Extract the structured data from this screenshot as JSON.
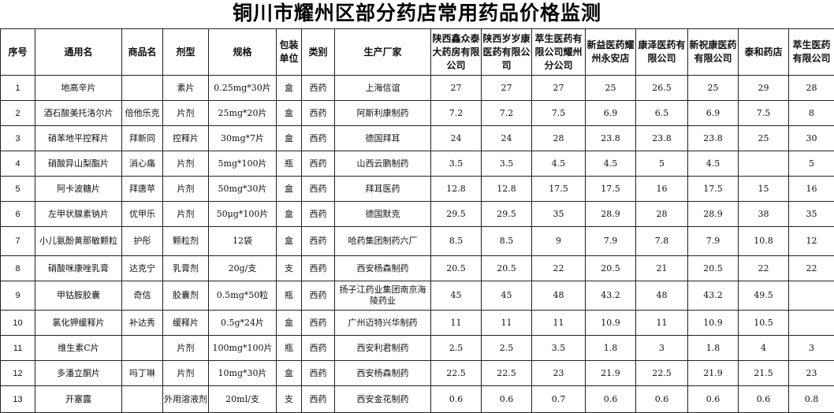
{
  "title": "铜川市耀州区部分药店常用药品价格监测",
  "headers": [
    "序号",
    "通用名",
    "商品名",
    "剂型",
    "规格",
    "包装单位",
    "类别",
    "生产厂家",
    "陕西鑫众泰大药房有限公司",
    "陕西岁岁康医药有限公司",
    "萃生医药有限公司耀州分公司",
    "新益医药耀州永安店",
    "康泽医药有限公司",
    "新祝康医药有限公司",
    "泰和药店",
    "萃生医药有限公司"
  ],
  "rows": [
    {
      "idx": "1",
      "name": "地高辛片",
      "brand": "",
      "form": "素片",
      "spec": "0.25mg*30片",
      "unit": "盒",
      "type": "西药",
      "maker": "上海信谊",
      "prices": [
        "27",
        "27",
        "27",
        "25",
        "26.5",
        "25",
        "29",
        "28"
      ]
    },
    {
      "idx": "2",
      "name": "酒石酸美托洛尔片",
      "brand": "倍他乐克",
      "form": "片剂",
      "spec": "25mg*20片",
      "unit": "盒",
      "type": "西药",
      "maker": "阿斯利康制药",
      "prices": [
        "7.2",
        "7.2",
        "7.5",
        "6.9",
        "6.5",
        "6.9",
        "7.5",
        "8"
      ]
    },
    {
      "idx": "3",
      "name": "硝苯地平控释片",
      "brand": "拜新同",
      "form": "控释片",
      "spec": "30mg*7片",
      "unit": "盒",
      "type": "西药",
      "maker": "德国拜耳",
      "prices": [
        "24",
        "24",
        "28",
        "23.8",
        "23.8",
        "23.8",
        "25",
        "30"
      ]
    },
    {
      "idx": "4",
      "name": "硝酸异山梨酯片",
      "brand": "消心痛",
      "form": "片剂",
      "spec": "5mg*100片",
      "unit": "瓶",
      "type": "西药",
      "maker": "山西云鹏制药",
      "prices": [
        "3.5",
        "3.5",
        "4.5",
        "4.5",
        "5",
        "4.5",
        "",
        "5"
      ]
    },
    {
      "idx": "5",
      "name": "阿卡波糖片",
      "brand": "拜唐苹",
      "form": "片剂",
      "spec": "50mg*30片",
      "unit": "盒",
      "type": "西药",
      "maker": "拜耳医药",
      "prices": [
        "12.8",
        "12.8",
        "17.5",
        "17.5",
        "16",
        "17.5",
        "15",
        "16"
      ]
    },
    {
      "idx": "6",
      "name": "左甲状腺素钠片",
      "brand": "优甲乐",
      "form": "片剂",
      "spec": "50μg*100片",
      "unit": "盒",
      "type": "西药",
      "maker": "德国默克",
      "prices": [
        "29.5",
        "29.5",
        "35",
        "28.9",
        "28",
        "28.9",
        "38",
        "35"
      ]
    },
    {
      "idx": "7",
      "name": "小儿氨酚黄那敏颗粒",
      "brand": "护彤",
      "form": "颗粒剂",
      "spec": "12袋",
      "unit": "盒",
      "type": "西药",
      "maker": "哈药集团制药六厂",
      "prices": [
        "8.5",
        "8.5",
        "9",
        "7.9",
        "7.8",
        "7.9",
        "10.8",
        "12"
      ]
    },
    {
      "idx": "8",
      "name": "硝酸咪康唑乳膏",
      "brand": "达克宁",
      "form": "乳膏剂",
      "spec": "20g/支",
      "unit": "支",
      "type": "西药",
      "maker": "西安杨森制药",
      "prices": [
        "20.5",
        "20.5",
        "22",
        "20.5",
        "21",
        "20.5",
        "22",
        "22"
      ]
    },
    {
      "idx": "9",
      "name": "甲钴胺胶囊",
      "brand": "奇信",
      "form": "胶囊剂",
      "spec": "0.5mg*50粒",
      "unit": "瓶",
      "type": "西药",
      "maker": "扬子江药业集团南京海陵药业",
      "prices": [
        "45",
        "45",
        "48",
        "43.2",
        "48",
        "43.2",
        "49.5",
        ""
      ]
    },
    {
      "idx": "10",
      "name": "氯化钾缓释片",
      "brand": "补达秀",
      "form": "缓释片",
      "spec": "0.5g*24片",
      "unit": "盒",
      "type": "西药",
      "maker": "广州迈特兴华制药",
      "prices": [
        "11",
        "11",
        "11",
        "10.9",
        "11",
        "10.9",
        "10.5",
        ""
      ]
    },
    {
      "idx": "11",
      "name": "维生素C片",
      "brand": "",
      "form": "片剂",
      "spec": "100mg*100片",
      "unit": "瓶",
      "type": "西药",
      "maker": "西安利君制药",
      "prices": [
        "2.5",
        "2.5",
        "3.5",
        "1.8",
        "3",
        "1.8",
        "4",
        "3"
      ]
    },
    {
      "idx": "12",
      "name": "多潘立酮片",
      "brand": "吗丁啉",
      "form": "片剂",
      "spec": "10mg*30片",
      "unit": "盒",
      "type": "西药",
      "maker": "西安杨森制药",
      "prices": [
        "22.5",
        "22.5",
        "23",
        "21.9",
        "22.5",
        "21.9",
        "21.5",
        "23"
      ]
    },
    {
      "idx": "13",
      "name": "开塞露",
      "brand": "",
      "form": "外用溶液剂",
      "spec": "20ml/支",
      "unit": "支",
      "type": "西药",
      "maker": "西安金花制药",
      "prices": [
        "0.6",
        "0.6",
        "0.7",
        "0.6",
        "0.6",
        "0.6",
        "0.6",
        "0.8"
      ]
    }
  ]
}
